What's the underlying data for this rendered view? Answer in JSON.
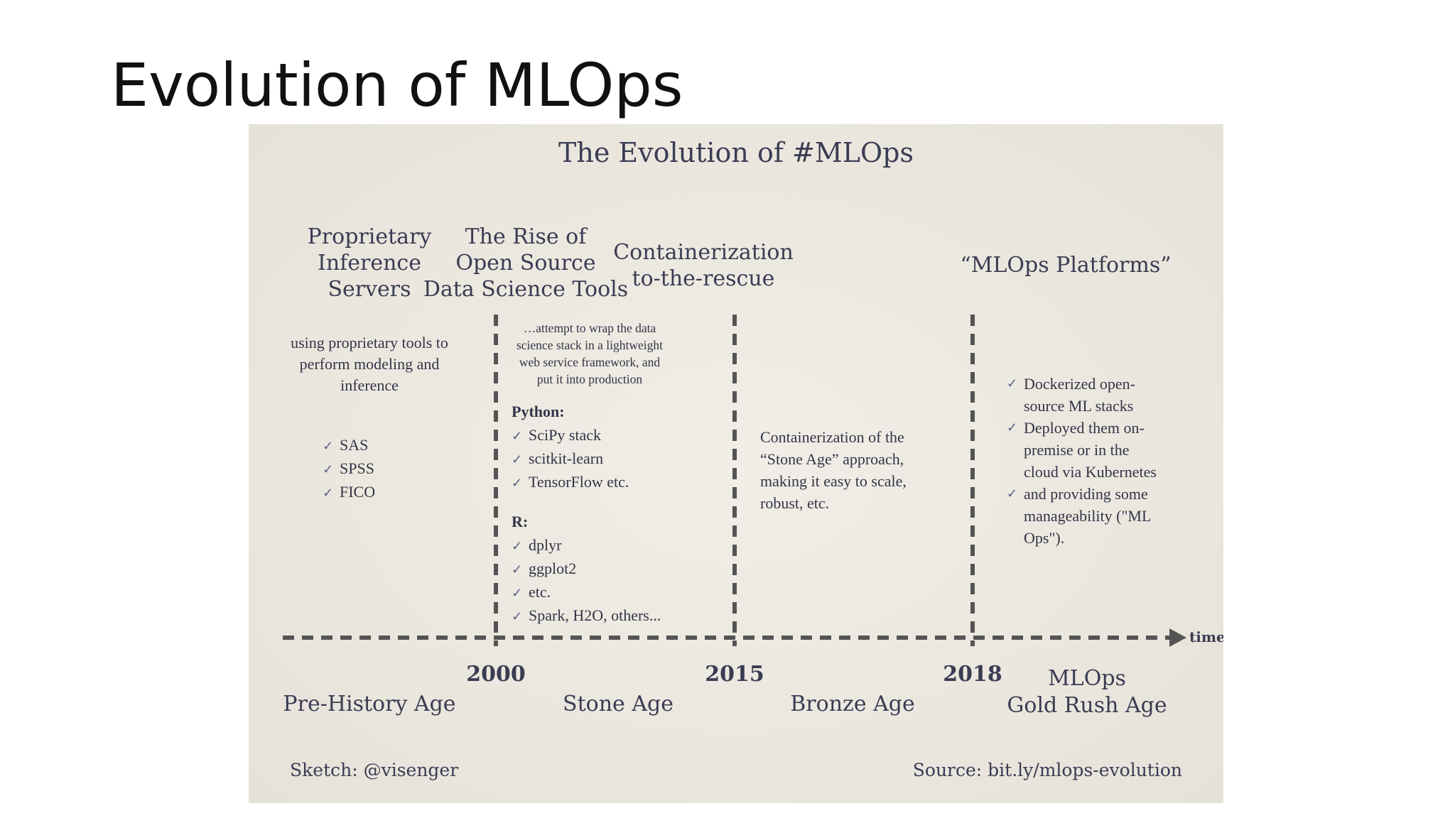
{
  "slide_title": "Evolution of MLOps",
  "sketch": {
    "title": "The Evolution of #MLOps",
    "columns": [
      {
        "heading": [
          "Proprietary",
          "Inference",
          "Servers"
        ],
        "description": [
          "using proprietary tools to",
          "perform modeling and",
          "inference"
        ],
        "items": [
          "SAS",
          "SPSS",
          "FICO"
        ]
      },
      {
        "heading": [
          "The Rise of",
          "Open Source",
          "Data Science Tools"
        ],
        "description": [
          "…attempt to wrap the data",
          "science stack in a lightweight",
          "web service framework, and",
          "put it into production"
        ],
        "python_label": "Python:",
        "python_items": [
          "SciPy stack",
          "scitkit-learn",
          "TensorFlow etc."
        ],
        "r_label": "R:",
        "r_items": [
          "dplyr",
          "ggplot2",
          "etc.",
          "Spark, H2O, others..."
        ]
      },
      {
        "heading": [
          "Containerization",
          "to-the-rescue"
        ],
        "description": [
          "Containerization of the",
          "“Stone Age” approach,",
          "making it easy to scale,",
          "robust, etc."
        ]
      },
      {
        "heading": [
          "“MLOps Platforms”"
        ],
        "items": [
          [
            "Dockerized open-",
            "source ML stacks"
          ],
          [
            "Deployed them on-",
            "premise or in the",
            "cloud via Kubernetes"
          ],
          [
            "and providing some",
            "manageability (\"ML",
            "Ops\")."
          ]
        ]
      }
    ],
    "axis_label": "time",
    "years": [
      "2000",
      "2015",
      "2018"
    ],
    "ages": [
      [
        "Pre-History Age"
      ],
      [
        "Stone Age"
      ],
      [
        "Bronze Age"
      ],
      [
        "MLOps",
        "Gold Rush Age"
      ]
    ],
    "check_icon": "check-icon",
    "footer_left": "Sketch: @visenger",
    "footer_right": "Source: bit.ly/mlops-evolution",
    "ink_color": "#3a3c52",
    "dash_color": "#545454",
    "paper_color": "#ece9e1"
  }
}
